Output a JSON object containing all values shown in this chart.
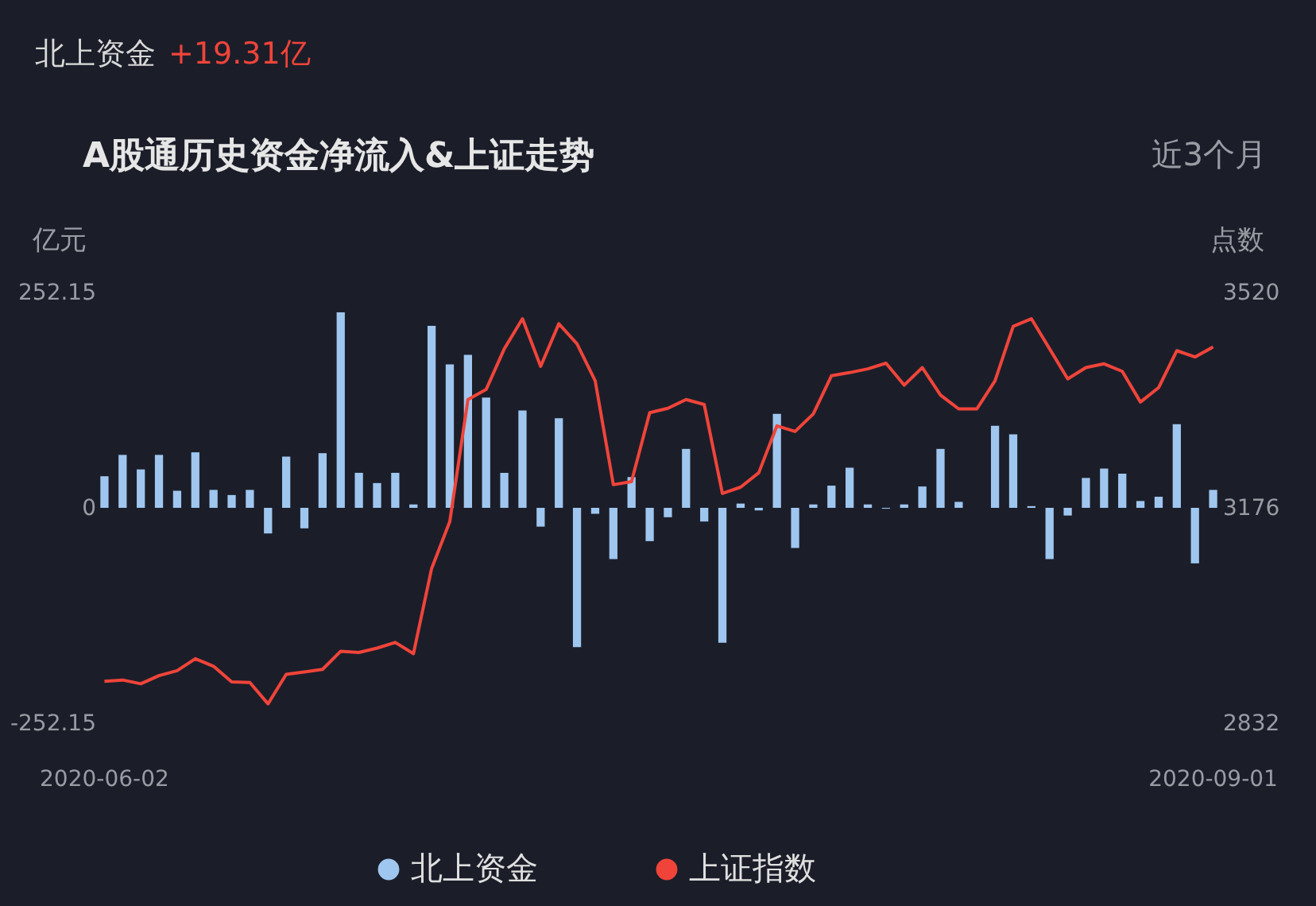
{
  "chart_data": {
    "type": "bar",
    "title": "A股通历史资金净流入&上证走势",
    "ylabel": "亿元",
    "y2label": "点数",
    "annotations": [
      "北上资金",
      "+19.31亿",
      "近3个月"
    ],
    "categories": [
      "2020-06-02",
      null,
      null,
      null,
      null,
      null,
      null,
      null,
      null,
      null,
      null,
      null,
      null,
      null,
      null,
      null,
      null,
      null,
      null,
      null,
      null,
      null,
      null,
      null,
      null,
      null,
      null,
      null,
      null,
      null,
      null,
      null,
      null,
      null,
      null,
      null,
      null,
      null,
      null,
      null,
      null,
      null,
      null,
      null,
      null,
      null,
      null,
      null,
      null,
      null,
      null,
      null,
      null,
      null,
      null,
      null,
      null,
      null,
      null,
      null,
      null,
      "2020-09-01"
    ],
    "series": [
      {
        "name": "北上资金",
        "color": "#9fc6ef",
        "values": [
          37,
          62,
          45,
          62,
          20,
          65,
          21,
          15,
          21,
          -30,
          60,
          -24,
          64,
          229,
          41,
          29,
          41,
          4,
          213,
          168,
          179,
          129,
          41,
          114,
          -22,
          105,
          -163,
          -7,
          -60,
          36,
          -39,
          -11,
          69,
          -16,
          -158,
          5,
          -3,
          110,
          -47,
          4,
          26,
          47,
          4,
          -1,
          4,
          25,
          69,
          7,
          0,
          96,
          86,
          2,
          -60,
          -9,
          35,
          46,
          40,
          8,
          13,
          98,
          -65,
          21
        ]
      },
      {
        "name": "上证指数",
        "type": "line",
        "axis": "y2",
        "color": "#f0443a",
        "values": [
          2899,
          2901,
          2895,
          2908,
          2916,
          2935,
          2923,
          2898,
          2897,
          2863,
          2910,
          2914,
          2918,
          2947,
          2945,
          2952,
          2961,
          2943,
          3079,
          3154,
          3349,
          3365,
          3430,
          3478,
          3402,
          3470,
          3438,
          3379,
          3213,
          3218,
          3328,
          3335,
          3349,
          3341,
          3199,
          3209,
          3232,
          3307,
          3298,
          3326,
          3387,
          3392,
          3398,
          3407,
          3372,
          3400,
          3356,
          3334,
          3334,
          3379,
          3466,
          3478,
          3430,
          3382,
          3400,
          3406,
          3394,
          3345,
          3368,
          3427,
          3417,
          3433
        ]
      }
    ],
    "ylim": [
      -252.15,
      252.15
    ],
    "yticks": [
      -252.15,
      0,
      252.15
    ],
    "y2lim": [
      2832,
      3520
    ],
    "y2ticks": [
      2832,
      3176,
      3520
    ],
    "grid": false,
    "legend": "bottom"
  }
}
